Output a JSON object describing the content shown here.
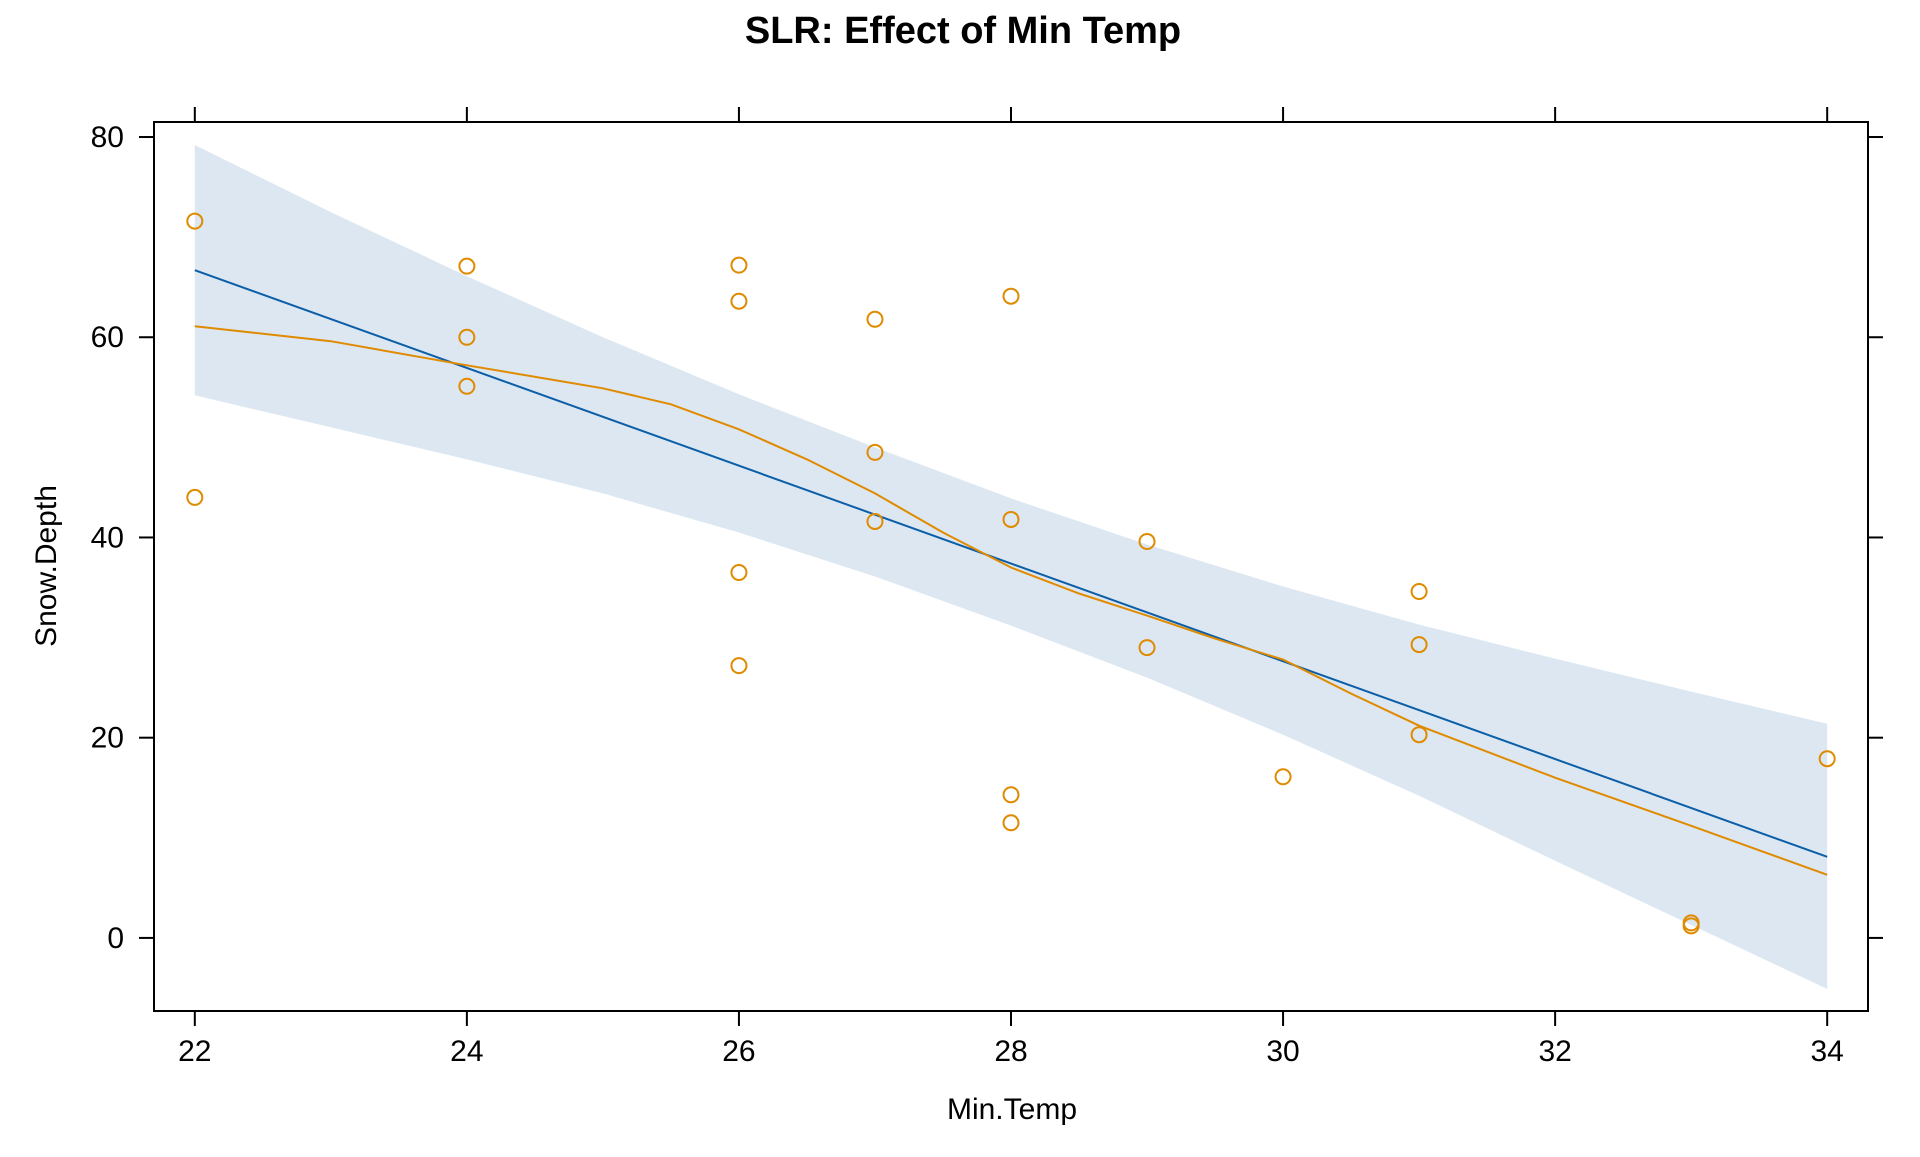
{
  "chart_data": {
    "type": "scatter",
    "title": "SLR: Effect of Min Temp",
    "xlabel": "Min.Temp",
    "ylabel": "Snow.Depth",
    "xlim": [
      21.7,
      34.3
    ],
    "ylim": [
      -7.3,
      81.5
    ],
    "x_ticks": [
      "22",
      "24",
      "26",
      "28",
      "30",
      "32",
      "34"
    ],
    "y_ticks": [
      "0",
      "20",
      "40",
      "60",
      "80"
    ],
    "grid": false,
    "legend": "none",
    "colors": {
      "points": "#E08A00",
      "regression_line": "#0B5EA8",
      "loess_line": "#E08A00",
      "confidence_band": "#DCE7F1",
      "frame": "#000000"
    },
    "points": [
      {
        "x": 22,
        "y": 71.6
      },
      {
        "x": 22,
        "y": 44.0
      },
      {
        "x": 24,
        "y": 67.1
      },
      {
        "x": 24,
        "y": 60.0
      },
      {
        "x": 24,
        "y": 55.1
      },
      {
        "x": 26,
        "y": 67.2
      },
      {
        "x": 26,
        "y": 63.6
      },
      {
        "x": 26,
        "y": 36.5
      },
      {
        "x": 26,
        "y": 27.2
      },
      {
        "x": 27,
        "y": 61.8
      },
      {
        "x": 27,
        "y": 48.5
      },
      {
        "x": 27,
        "y": 41.6
      },
      {
        "x": 28,
        "y": 64.1
      },
      {
        "x": 28,
        "y": 41.8
      },
      {
        "x": 28,
        "y": 14.3
      },
      {
        "x": 28,
        "y": 11.5
      },
      {
        "x": 29,
        "y": 39.6
      },
      {
        "x": 29,
        "y": 29.0
      },
      {
        "x": 30,
        "y": 16.1
      },
      {
        "x": 31,
        "y": 34.6
      },
      {
        "x": 31,
        "y": 29.3
      },
      {
        "x": 31,
        "y": 20.3
      },
      {
        "x": 33,
        "y": 1.5
      },
      {
        "x": 33,
        "y": 1.2
      },
      {
        "x": 34,
        "y": 17.9
      }
    ],
    "regression_line": {
      "x": [
        22,
        34
      ],
      "y": [
        66.7,
        8.1
      ]
    },
    "confidence_band": {
      "x": [
        22,
        23,
        24,
        25,
        26,
        27,
        28,
        29,
        30,
        31,
        32,
        33,
        34
      ],
      "upper": [
        79.2,
        72.5,
        66.1,
        60.0,
        54.3,
        49.0,
        43.9,
        39.3,
        35.1,
        31.3,
        27.9,
        24.6,
        21.4
      ],
      "lower": [
        54.2,
        51.0,
        47.8,
        44.4,
        40.5,
        36.1,
        31.2,
        26.0,
        20.3,
        14.2,
        7.7,
        1.3,
        -5.1
      ]
    },
    "loess_line": {
      "x": [
        22,
        23,
        24,
        25,
        25.5,
        26,
        26.5,
        27,
        27.5,
        28,
        28.5,
        29,
        29.5,
        30,
        30.5,
        31,
        32,
        33,
        34
      ],
      "y": [
        61.1,
        59.6,
        57.2,
        54.9,
        53.3,
        50.8,
        47.8,
        44.4,
        40.5,
        37.0,
        34.4,
        32.2,
        29.9,
        27.8,
        24.4,
        21.2,
        16.0,
        11.2,
        6.3
      ]
    }
  }
}
